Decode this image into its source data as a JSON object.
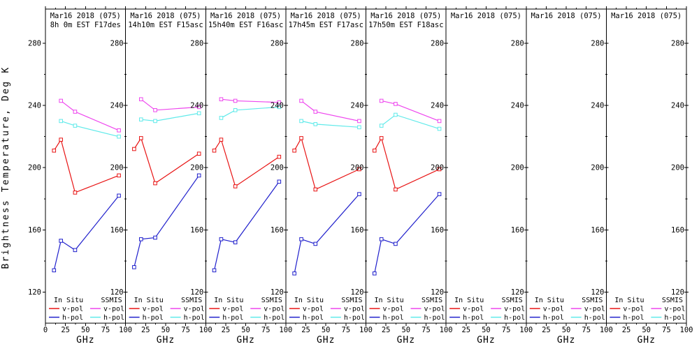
{
  "chart_data": {
    "type": "line",
    "xlabel": "GHz",
    "ylabel": "Brightness Temperature, Deg K",
    "xlim": [
      0,
      100
    ],
    "x_ticks": [
      0,
      25,
      50,
      75,
      100
    ],
    "ylim": [
      100,
      302
    ],
    "y_ticks": [
      120,
      160,
      200,
      240,
      280
    ],
    "grid": false,
    "legend": {
      "position": "bottom-inside-each-panel",
      "groups": [
        "In Situ",
        "SSMIS"
      ],
      "entries": [
        {
          "group": "In Situ",
          "label": "v-pol",
          "series": "insitu_v",
          "color": "#e81414"
        },
        {
          "group": "In Situ",
          "label": "h-pol",
          "series": "insitu_h",
          "color": "#2020cc"
        },
        {
          "group": "SSMIS",
          "label": "v-pol",
          "series": "ssmis_v",
          "color": "#ee46ee"
        },
        {
          "group": "SSMIS",
          "label": "h-pol",
          "series": "ssmis_h",
          "color": "#5feaea"
        }
      ]
    },
    "x_insitu": [
      10.7,
      19.35,
      37,
      91.655
    ],
    "x_ssmis": [
      19.35,
      37,
      91.655
    ],
    "panels": [
      {
        "title": "Mar16 2018 (075)",
        "subtitle": "8h 0m EST F17des",
        "insitu_v": [
          211,
          218,
          184,
          195
        ],
        "insitu_h": [
          134,
          153,
          147,
          182
        ],
        "ssmis_v": [
          243,
          236,
          224
        ],
        "ssmis_h": [
          230,
          227,
          220
        ]
      },
      {
        "title": "Mar16 2018 (075)",
        "subtitle": "14h10m EST F15asc",
        "insitu_v": [
          212,
          219,
          190,
          209
        ],
        "insitu_h": [
          136,
          154,
          155,
          195
        ],
        "ssmis_v": [
          244,
          237,
          239
        ],
        "ssmis_h": [
          231,
          230,
          235
        ]
      },
      {
        "title": "Mar16 2018 (075)",
        "subtitle": "15h40m EST F16asc",
        "insitu_v": [
          211,
          218,
          188,
          207
        ],
        "insitu_h": [
          134,
          154,
          152,
          191
        ],
        "ssmis_v": [
          244,
          243,
          242
        ],
        "ssmis_h": [
          232,
          237,
          239
        ]
      },
      {
        "title": "Mar16 2018 (075)",
        "subtitle": "17h45m EST F17asc",
        "insitu_v": [
          211,
          219,
          186,
          199
        ],
        "insitu_h": [
          132,
          154,
          151,
          183
        ],
        "ssmis_v": [
          243,
          236,
          230
        ],
        "ssmis_h": [
          230,
          228,
          226
        ]
      },
      {
        "title": "Mar16 2018 (075)",
        "subtitle": "17h50m EST F18asc",
        "insitu_v": [
          211,
          219,
          186,
          199
        ],
        "insitu_h": [
          132,
          154,
          151,
          183
        ],
        "ssmis_v": [
          243,
          241,
          230
        ],
        "ssmis_h": [
          227,
          234,
          225
        ]
      },
      {
        "title": "Mar16 2018 (075)",
        "subtitle": "",
        "insitu_v": [],
        "insitu_h": [],
        "ssmis_v": [],
        "ssmis_h": []
      },
      {
        "title": "Mar16 2018 (075)",
        "subtitle": "",
        "insitu_v": [],
        "insitu_h": [],
        "ssmis_v": [],
        "ssmis_h": []
      },
      {
        "title": "Mar16 2018 (075)",
        "subtitle": "",
        "insitu_v": [],
        "insitu_h": [],
        "ssmis_v": [],
        "ssmis_h": []
      }
    ]
  }
}
